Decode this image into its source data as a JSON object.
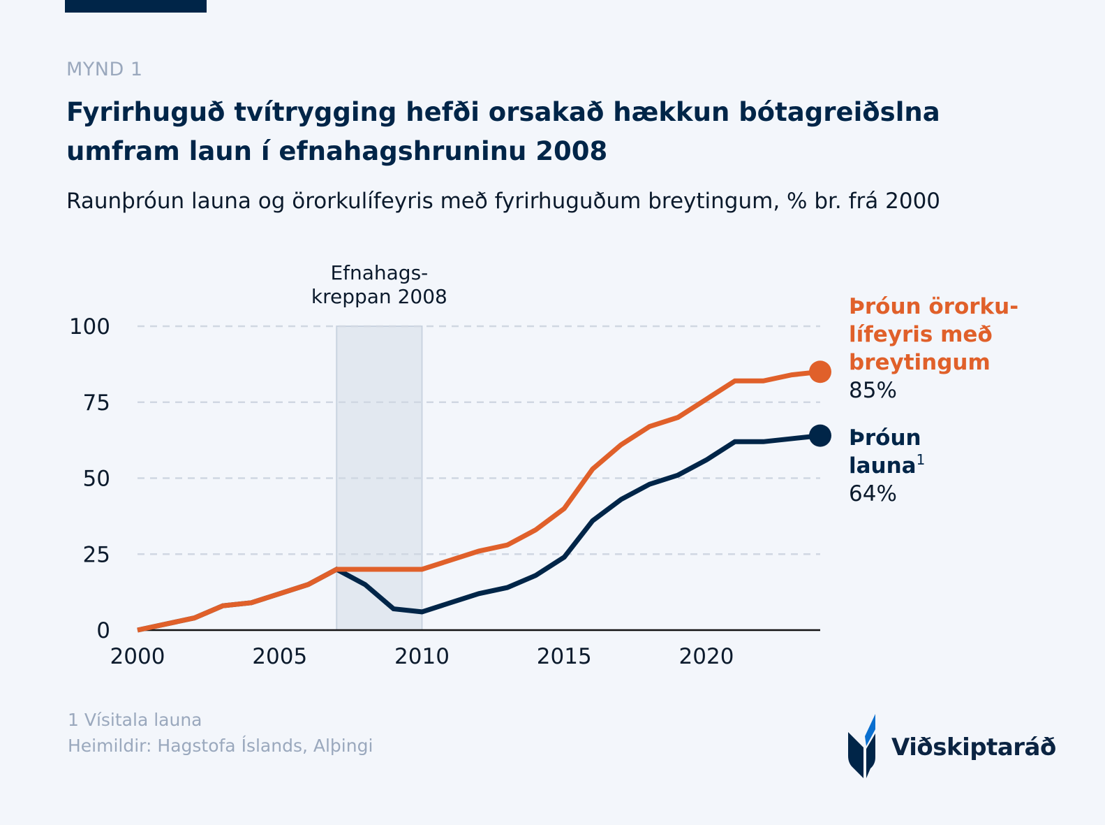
{
  "header": {
    "label": "MYND 1",
    "title": "Fyrirhuguð tvítrygging hefði orsakað hækkun bótagreiðslna umfram laun í efnahagshruninu 2008",
    "subtitle": "Raunþróun launa og örorkulífeyris með fyrirhuguðum breytingum, % br. frá 2000"
  },
  "chart_data": {
    "type": "line",
    "title": "Fyrirhuguð tvítrygging hefði orsakað hækkun bótagreiðslna umfram laun í efnahagshruninu 2008",
    "subtitle": "Raunþróun launa og örorkulífeyris með fyrirhuguðum breytingum, % br. frá 2000",
    "xlabel": "",
    "ylabel": "",
    "xlim": [
      2000,
      2024
    ],
    "ylim": [
      0,
      100
    ],
    "x_ticks": [
      2000,
      2005,
      2010,
      2015,
      2020
    ],
    "y_ticks": [
      0,
      25,
      50,
      75,
      100
    ],
    "grid": "horizontal dashed",
    "x": [
      2000,
      2001,
      2002,
      2003,
      2004,
      2005,
      2006,
      2007,
      2008,
      2009,
      2010,
      2011,
      2012,
      2013,
      2014,
      2015,
      2016,
      2017,
      2018,
      2019,
      2020,
      2021,
      2022,
      2023,
      2024
    ],
    "series": [
      {
        "name": "Þróun örorkulífeyris með breytingum",
        "label_lines": [
          "Þróun örorku-",
          "lífeyris með",
          "breytingum"
        ],
        "end_label": "85%",
        "color": "#e0602a",
        "values": [
          0,
          2,
          4,
          8,
          9,
          12,
          15,
          20,
          20,
          20,
          20,
          23,
          26,
          28,
          33,
          40,
          53,
          61,
          67,
          70,
          76,
          82,
          82,
          84,
          85
        ]
      },
      {
        "name": "Þróun launa",
        "label_lines": [
          "Þróun",
          "launa"
        ],
        "superscript": "1",
        "end_label": "64%",
        "color": "#002548",
        "values": [
          0,
          2,
          4,
          8,
          9,
          12,
          15,
          20,
          15,
          7,
          6,
          9,
          12,
          14,
          18,
          24,
          36,
          43,
          48,
          51,
          56,
          62,
          62,
          63,
          64
        ]
      }
    ],
    "annotations": [
      {
        "type": "shaded-region",
        "x_range": [
          2007,
          2010
        ],
        "label_lines": [
          "Efnahags-",
          "kreppan 2008"
        ],
        "color": "#e2e8f0"
      }
    ]
  },
  "footer": {
    "note": "1 Vísitala launa",
    "source": "Heimildir: Hagstofa Íslands, Alþingi"
  },
  "logo": {
    "text": "Viðskiptaráð",
    "colors": {
      "navy": "#002548",
      "blue": "#0a6fcf"
    }
  }
}
